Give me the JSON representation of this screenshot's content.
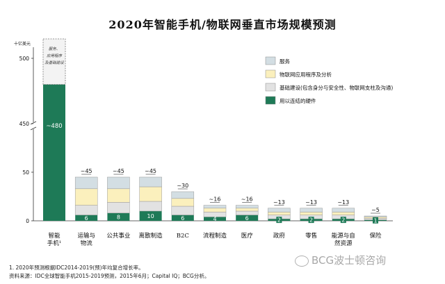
{
  "chart_data": {
    "type": "bar",
    "stacked": true,
    "title": "2020年智能手机/物联网垂直市场规模预测",
    "unit_label": "十亿美元",
    "y_ticks": [
      0,
      50,
      450,
      500
    ],
    "axis_break": [
      50,
      450
    ],
    "legend_position": "top-right",
    "categories": [
      {
        "label": "智能手机¹",
        "lines": [
          "智能",
          "手机¹"
        ]
      },
      {
        "label": "运输与物流",
        "lines": [
          "运输与",
          "物流"
        ]
      },
      {
        "label": "公共事业",
        "lines": [
          "公共事业"
        ]
      },
      {
        "label": "离散制造",
        "lines": [
          "离散制造"
        ]
      },
      {
        "label": "B2C",
        "lines": [
          "B2C"
        ]
      },
      {
        "label": "流程制造",
        "lines": [
          "流程制造"
        ]
      },
      {
        "label": "医疗",
        "lines": [
          "医疗"
        ]
      },
      {
        "label": "政府",
        "lines": [
          "政府"
        ]
      },
      {
        "label": "零售",
        "lines": [
          "零售"
        ]
      },
      {
        "label": "能源与自然资源",
        "lines": [
          "能源与自",
          "然资源"
        ]
      },
      {
        "label": "保险",
        "lines": [
          "保险"
        ]
      }
    ],
    "totals": [
      null,
      "~45",
      "~45",
      "~45",
      "~30",
      "~16",
      "~16",
      "~13",
      "~13",
      "~13",
      "~5"
    ],
    "series": [
      {
        "name": "用以连结的硬件",
        "color": "#1e7a57",
        "labels": [
          "~480",
          "6",
          "8",
          "10",
          "6",
          "4",
          "6",
          "2",
          "2",
          "2",
          "1"
        ],
        "values": [
          480,
          6,
          8,
          10,
          6,
          4,
          6,
          2,
          2,
          2,
          1
        ]
      },
      {
        "name": "基础建设(包含身分与安全性、物联网支柱及沟通)",
        "color": "#e2e2e2",
        "values": [
          0,
          10,
          11,
          10,
          9,
          5,
          4,
          4,
          4,
          4,
          1.5
        ]
      },
      {
        "name": "物联网应用程序及分析",
        "color": "#fbf0bd",
        "values": [
          0,
          17,
          14,
          15,
          8,
          4,
          3,
          3,
          3,
          3,
          1.5
        ]
      },
      {
        "name": "服务",
        "color": "#d3dee3",
        "values": [
          0,
          12,
          12,
          10,
          7,
          3,
          3,
          4,
          4,
          4,
          1
        ]
      }
    ],
    "smartphone_note": "服务、应用程序及基础建设"
  },
  "footnote": "1. 2020年预测根据IDC2014-2019(预)年均复合增长率。",
  "source": "资料来源：IDC全球智能手机2015-2019预测，2015年6月；Capital IQ；BCG分析。",
  "watermark": "BCG波士顿咨询"
}
